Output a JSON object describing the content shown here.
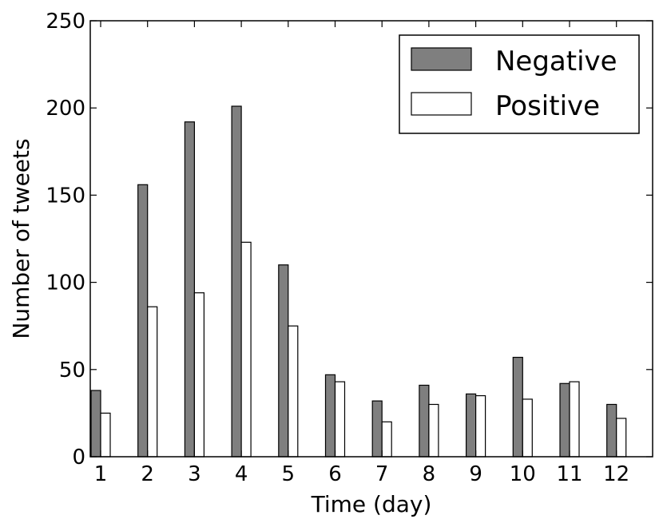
{
  "chart_data": {
    "type": "bar",
    "title": "",
    "xlabel": "Time (day)",
    "ylabel": "Number of tweets",
    "categories": [
      "1",
      "2",
      "3",
      "4",
      "5",
      "6",
      "7",
      "8",
      "9",
      "10",
      "11",
      "12"
    ],
    "series": [
      {
        "name": "Negative",
        "color": "#7f7f7f",
        "values": [
          38,
          156,
          192,
          201,
          110,
          47,
          32,
          41,
          36,
          57,
          42,
          30
        ]
      },
      {
        "name": "Positive",
        "color": "#ffffff",
        "values": [
          25,
          86,
          94,
          123,
          75,
          43,
          20,
          30,
          35,
          33,
          43,
          22
        ]
      }
    ],
    "ylim": [
      0,
      250
    ],
    "yticks": [
      0,
      50,
      100,
      150,
      200,
      250
    ],
    "grid": false,
    "legend_position": "top-right"
  }
}
